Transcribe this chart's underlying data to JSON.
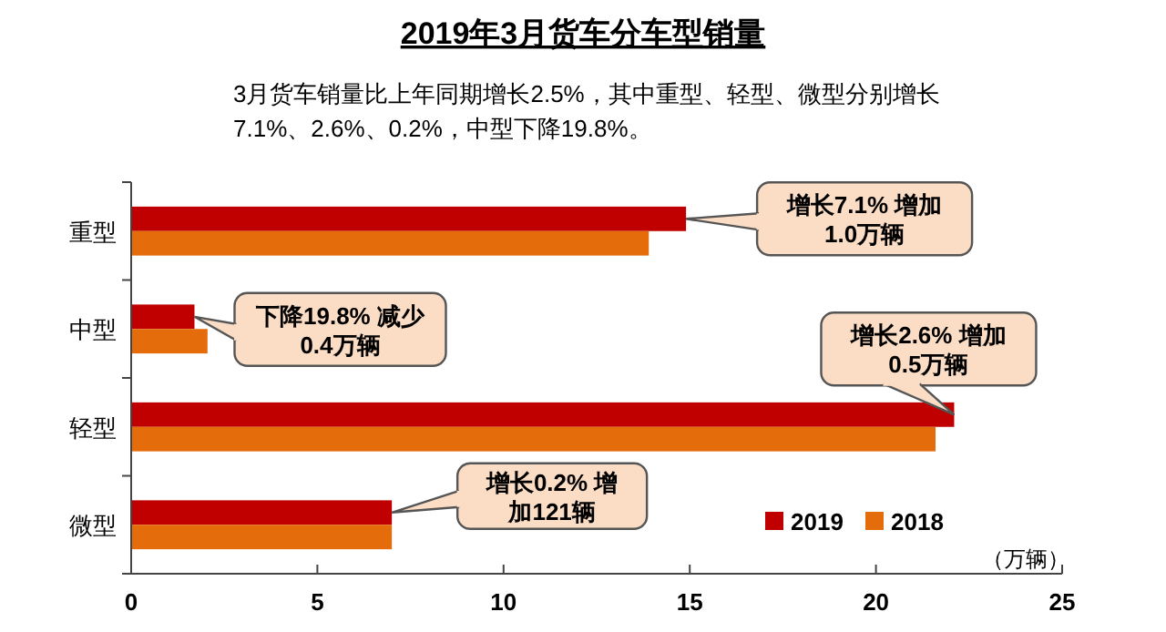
{
  "chart_data": {
    "type": "bar",
    "orientation": "horizontal",
    "title": "2019年3月货车分车型销量",
    "subtitle": "3月货车销量比上年同期增长2.5%，其中重型、轻型、微型分别增长\n7.1%、2.6%、0.2%，中型下降19.8%。",
    "xlabel": "（万辆）",
    "categories": [
      "重型",
      "中型",
      "轻型",
      "微型"
    ],
    "series": [
      {
        "name": "2019",
        "color": "#c00000",
        "values": [
          14.9,
          1.7,
          22.1,
          7.0
        ]
      },
      {
        "name": "2018",
        "color": "#e46c0a",
        "values": [
          13.9,
          2.05,
          21.6,
          7.0
        ]
      }
    ],
    "xlim": [
      0,
      25
    ],
    "xticks": [
      0,
      5,
      10,
      15,
      20,
      25
    ],
    "grid": false,
    "legend": "bottom right",
    "annotations": [
      "增长7.1% 增加1.0万辆",
      "下降19.8% 减少0.4万辆",
      "增长2.6% 增加0.5万辆",
      "增长0.2% 增加121辆"
    ]
  }
}
